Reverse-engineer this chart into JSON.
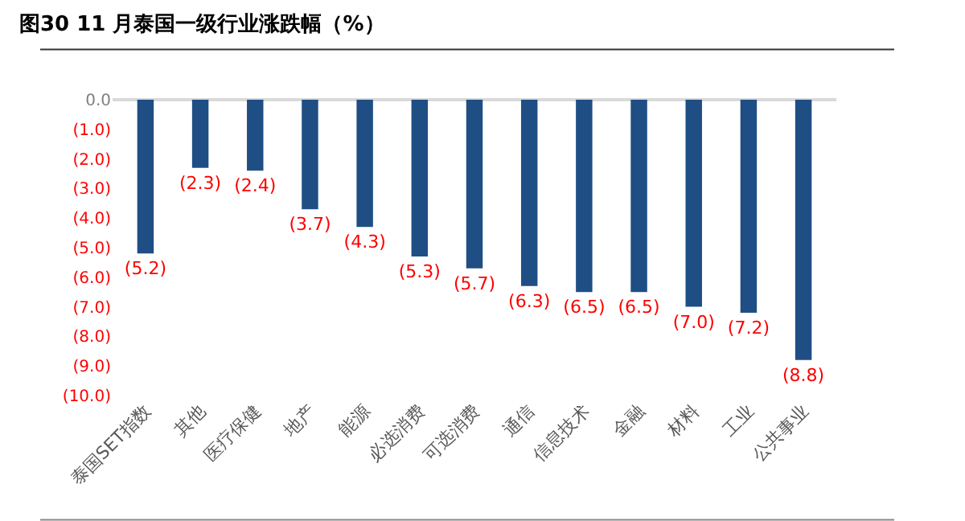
{
  "chart_data": {
    "type": "bar",
    "title": "图30 11 月泰国一级行业涨跌幅（%）",
    "categories": [
      "泰国SET指数",
      "其他",
      "医疗保健",
      "地产",
      "能源",
      "必选消费",
      "可选消费",
      "通信",
      "信息技术",
      "金融",
      "材料",
      "工业",
      "公共事业"
    ],
    "values": [
      -5.2,
      -2.3,
      -2.4,
      -3.7,
      -4.3,
      -5.3,
      -5.7,
      -6.3,
      -6.5,
      -6.5,
      -7.0,
      -7.2,
      -8.8
    ],
    "value_labels": [
      "(5.2)",
      "(2.3)",
      "(2.4)",
      "(3.7)",
      "(4.3)",
      "(5.3)",
      "(5.7)",
      "(6.3)",
      "(6.5)",
      "(6.5)",
      "(7.0)",
      "(7.2)",
      "(8.8)"
    ],
    "color": "#1f4e84",
    "ylim": [
      -10,
      0
    ],
    "yticks": [
      {
        "value": 0,
        "label": "0.0"
      },
      {
        "value": -1,
        "label": "(1.0)"
      },
      {
        "value": -2,
        "label": "(2.0)"
      },
      {
        "value": -3,
        "label": "(3.0)"
      },
      {
        "value": -4,
        "label": "(4.0)"
      },
      {
        "value": -5,
        "label": "(5.0)"
      },
      {
        "value": -6,
        "label": "(6.0)"
      },
      {
        "value": -7,
        "label": "(7.0)"
      },
      {
        "value": -8,
        "label": "(8.0)"
      },
      {
        "value": -9,
        "label": "(9.0)"
      },
      {
        "value": -10,
        "label": "(10.0)"
      }
    ],
    "legend": false
  }
}
